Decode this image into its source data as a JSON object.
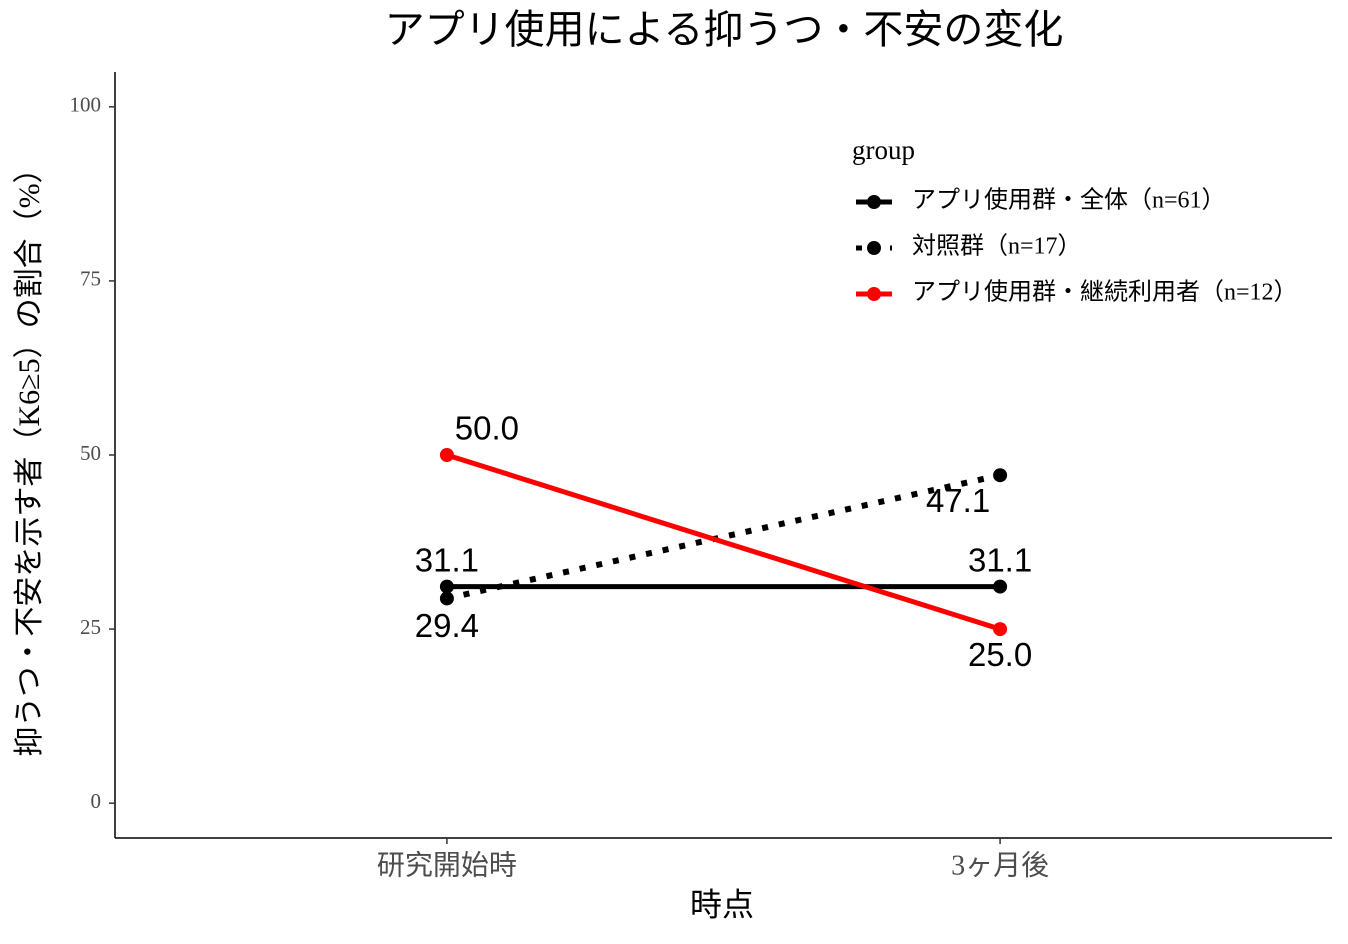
{
  "chart_data": {
    "type": "line",
    "title": "アプリ使用による抑うつ・不安の変化",
    "x_label": "時点",
    "y_label": "抑うつ・不安を示す者（K6≥5）の割合（%）",
    "categories": [
      "研究開始時",
      "3ヶ月後"
    ],
    "ylim": [
      -5,
      105
    ],
    "yticks": [
      0,
      25,
      50,
      75,
      100
    ],
    "grid": false,
    "legend_title": "group",
    "legend_position": "top-right",
    "series": [
      {
        "name": "アプリ使用群・全体（n=61）",
        "color": "#000000",
        "dash": "solid",
        "values": [
          31.1,
          31.1
        ]
      },
      {
        "name": "対照群（n=17）",
        "color": "#000000",
        "dash": "dotted",
        "values": [
          29.4,
          47.1
        ]
      },
      {
        "name": "アプリ使用群・継続利用者（n=12）",
        "color": "#ff0000",
        "dash": "solid",
        "values": [
          50,
          25
        ],
        "value_labels": [
          "50.0",
          "25.0"
        ]
      }
    ]
  }
}
